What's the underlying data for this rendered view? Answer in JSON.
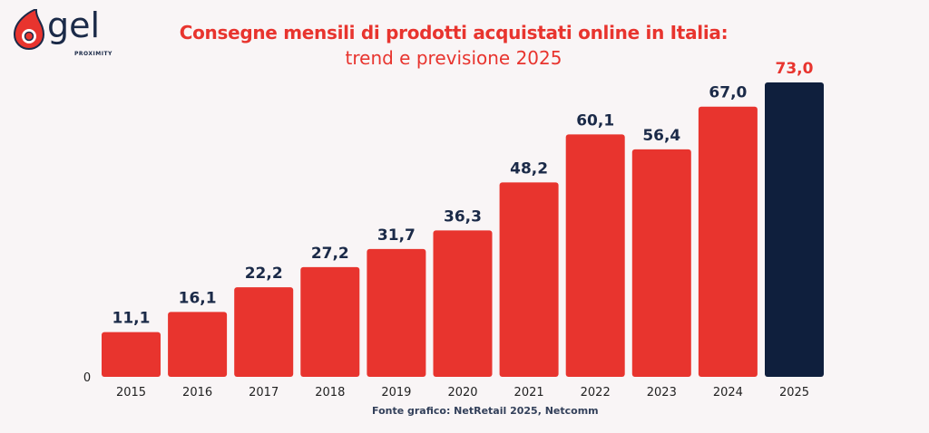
{
  "logo": {
    "text": "gel",
    "subtext": "PROXIMITY"
  },
  "source": "Fonte grafico: NetRetail 2025, Netcomm",
  "colors": {
    "bar": "#e8342e",
    "forecast_bar": "#0f1f3d",
    "label": "#1b2a48",
    "forecast_label": "#e8342e"
  },
  "chart_data": {
    "type": "bar",
    "title": "Consegne mensili di prodotti acquistati online in Italia:",
    "subtitle": "trend e previsione 2025",
    "categories": [
      "2015",
      "2016",
      "2017",
      "2018",
      "2019",
      "2020",
      "2021",
      "2022",
      "2023",
      "2024",
      "2025"
    ],
    "values": [
      11.1,
      16.1,
      22.2,
      27.2,
      31.7,
      36.3,
      48.2,
      60.1,
      56.4,
      67.0,
      73.0
    ],
    "data_labels": [
      "11,1",
      "16,1",
      "22,2",
      "27,2",
      "31,7",
      "36,3",
      "48,2",
      "60,1",
      "56,4",
      "67,0",
      "73,0"
    ],
    "highlight": "2025",
    "yaxis_tick": "0",
    "ylim": [
      0,
      73
    ],
    "grid": false,
    "legend": "none"
  }
}
